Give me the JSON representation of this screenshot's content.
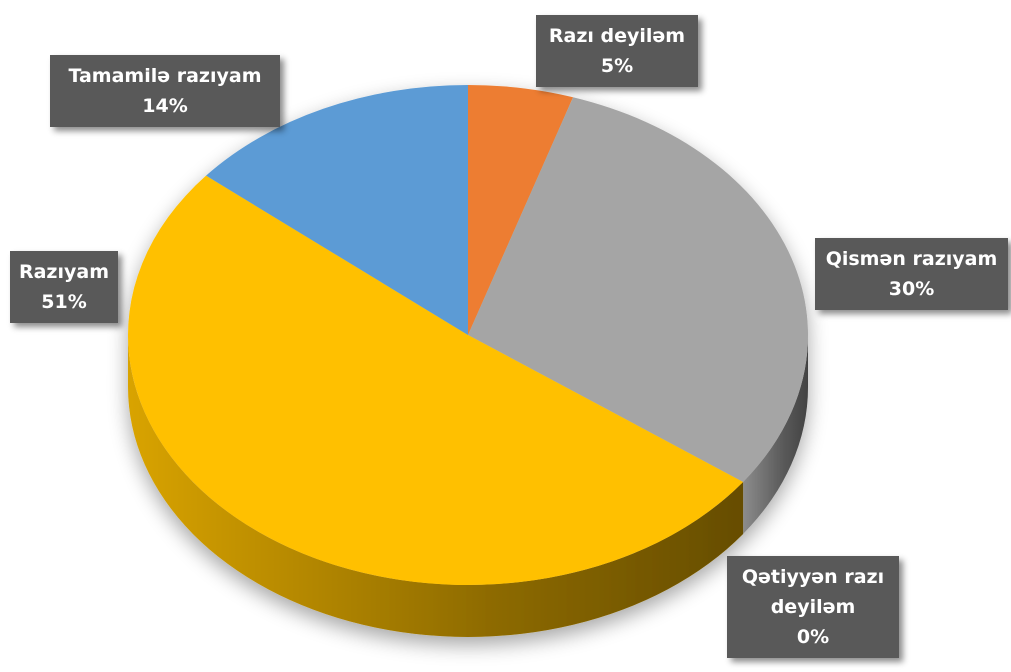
{
  "chart_data": {
    "type": "pie",
    "categories": [
      "Razı deyiləm",
      "Qismən razıyam",
      "Qətiyyən razı deyiləm",
      "Razıyam",
      "Tamamilə razıyam"
    ],
    "values": [
      5,
      30,
      0,
      51,
      14
    ],
    "value_labels": [
      "5%",
      "30%",
      "0%",
      "51%",
      "14%"
    ],
    "colors": [
      "#ed7d31",
      "#a5a5a5",
      "#4f4f4f",
      "#ffc000",
      "#5b9bd5"
    ]
  }
}
